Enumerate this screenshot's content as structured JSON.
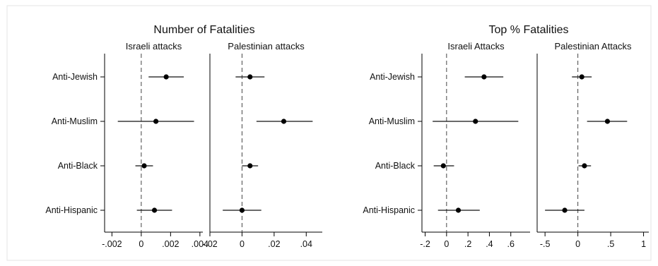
{
  "chart_data": [
    {
      "type": "scatter",
      "title": "Number of Fatalities",
      "categories": [
        "Anti-Jewish",
        "Anti-Muslim",
        "Anti-Black",
        "Anti-Hispanic"
      ],
      "panels": [
        {
          "subtitle": "Israeli attacks",
          "xlim": [
            -0.0025,
            0.0042
          ],
          "xticks": [
            {
              "value": -0.002,
              "label": "-.002"
            },
            {
              "value": 0,
              "label": "0"
            },
            {
              "value": 0.002,
              "label": ".002"
            },
            {
              "value": 0.004,
              "label": ".004"
            }
          ],
          "points": [
            {
              "category": "Anti-Jewish",
              "estimate": 0.0017,
              "ci": [
                0.0005,
                0.0029
              ]
            },
            {
              "category": "Anti-Muslim",
              "estimate": 0.001,
              "ci": [
                -0.0016,
                0.0036
              ]
            },
            {
              "category": "Anti-Black",
              "estimate": 0.0002,
              "ci": [
                -0.0004,
                0.0008
              ]
            },
            {
              "category": "Anti-Hispanic",
              "estimate": 0.0009,
              "ci": [
                -0.0003,
                0.0021
              ]
            }
          ]
        },
        {
          "subtitle": "Palestinian attacks",
          "xlim": [
            -0.02,
            0.05
          ],
          "xticks": [
            {
              "value": -0.02,
              "label": "-.02"
            },
            {
              "value": 0,
              "label": "0"
            },
            {
              "value": 0.02,
              "label": ".02"
            },
            {
              "value": 0.04,
              "label": ".04"
            }
          ],
          "points": [
            {
              "category": "Anti-Jewish",
              "estimate": 0.005,
              "ci": [
                -0.004,
                0.014
              ]
            },
            {
              "category": "Anti-Muslim",
              "estimate": 0.026,
              "ci": [
                0.009,
                0.044
              ]
            },
            {
              "category": "Anti-Black",
              "estimate": 0.005,
              "ci": [
                0.0,
                0.01
              ]
            },
            {
              "category": "Anti-Hispanic",
              "estimate": 0.0,
              "ci": [
                -0.012,
                0.012
              ]
            }
          ]
        }
      ],
      "reference_line": 0
    },
    {
      "type": "scatter",
      "title": "Top % Fatalities",
      "categories": [
        "Anti-Jewish",
        "Anti-Muslim",
        "Anti-Black",
        "Anti-Hispanic"
      ],
      "panels": [
        {
          "subtitle": "Israeli Attacks",
          "xlim": [
            -0.23,
            0.78
          ],
          "xticks": [
            {
              "value": -0.2,
              "label": "-.2"
            },
            {
              "value": 0,
              "label": "0"
            },
            {
              "value": 0.2,
              "label": ".2"
            },
            {
              "value": 0.4,
              "label": ".4"
            },
            {
              "value": 0.6,
              "label": ".6"
            }
          ],
          "points": [
            {
              "category": "Anti-Jewish",
              "estimate": 0.35,
              "ci": [
                0.17,
                0.53
              ]
            },
            {
              "category": "Anti-Muslim",
              "estimate": 0.27,
              "ci": [
                -0.13,
                0.67
              ]
            },
            {
              "category": "Anti-Black",
              "estimate": -0.03,
              "ci": [
                -0.12,
                0.07
              ]
            },
            {
              "category": "Anti-Hispanic",
              "estimate": 0.11,
              "ci": [
                -0.08,
                0.31
              ]
            }
          ]
        },
        {
          "subtitle": "Palestinian Attacks",
          "xlim": [
            -0.62,
            1.08
          ],
          "xticks": [
            {
              "value": -0.5,
              "label": "-.5"
            },
            {
              "value": 0,
              "label": "0"
            },
            {
              "value": 0.5,
              "label": ".5"
            },
            {
              "value": 1,
              "label": "1"
            }
          ],
          "points": [
            {
              "category": "Anti-Jewish",
              "estimate": 0.06,
              "ci": [
                -0.09,
                0.21
              ]
            },
            {
              "category": "Anti-Muslim",
              "estimate": 0.45,
              "ci": [
                0.14,
                0.75
              ]
            },
            {
              "category": "Anti-Black",
              "estimate": 0.1,
              "ci": [
                0.01,
                0.2
              ]
            },
            {
              "category": "Anti-Hispanic",
              "estimate": -0.2,
              "ci": [
                -0.5,
                0.1
              ]
            }
          ]
        }
      ],
      "reference_line": 0
    }
  ]
}
